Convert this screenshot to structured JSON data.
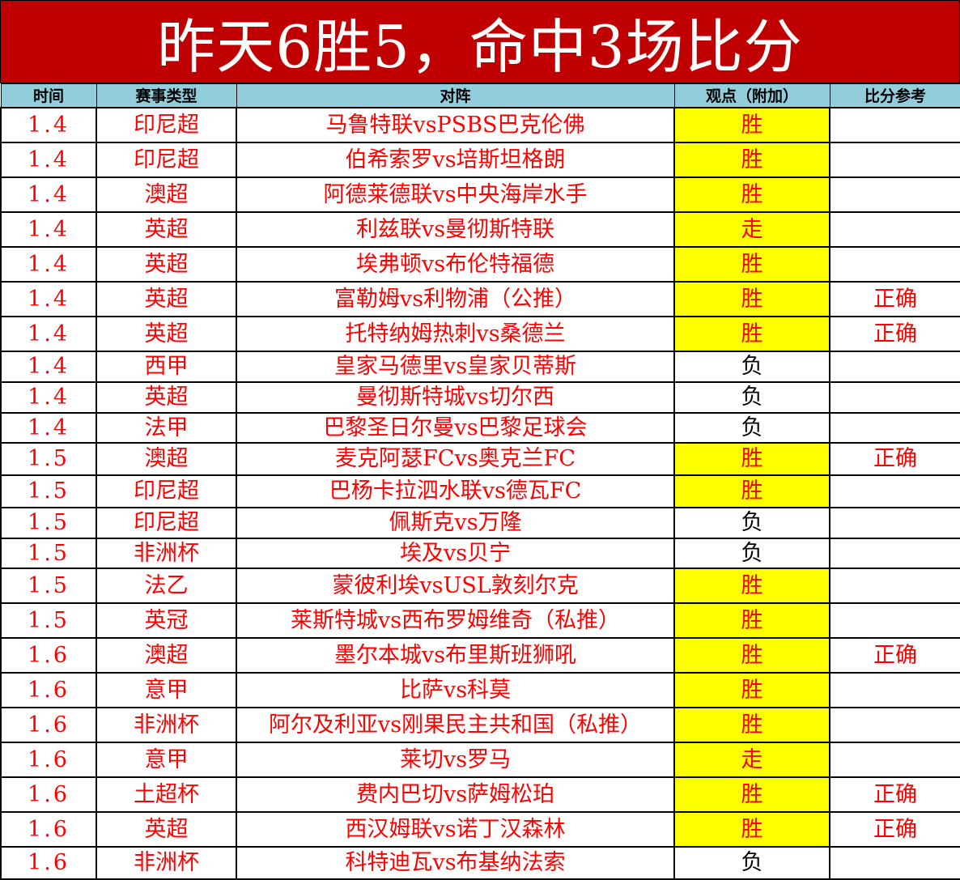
{
  "title": "昨天6胜5，命中3场比分",
  "colors": {
    "title_bg": "#c00000",
    "header_bg": "#92cddc",
    "text": "#ff0000",
    "highlight": "#ffff00"
  },
  "columns": [
    "时间",
    "赛事类型",
    "对阵",
    "观点（附加）",
    "比分参考"
  ],
  "rows": [
    {
      "date": "1.4",
      "league": "印尼超",
      "match": "马鲁特联vsPSBS巴克伦佛",
      "pick": "胜",
      "score": "",
      "highlight": true
    },
    {
      "date": "1.4",
      "league": "印尼超",
      "match": "伯希索罗vs培斯坦格朗",
      "pick": "胜",
      "score": "",
      "highlight": true
    },
    {
      "date": "1.4",
      "league": "澳超",
      "match": "阿德莱德联vs中央海岸水手",
      "pick": "胜",
      "score": "",
      "highlight": true
    },
    {
      "date": "1.4",
      "league": "英超",
      "match": "利兹联vs曼彻斯特联",
      "pick": "走",
      "score": "",
      "highlight": true
    },
    {
      "date": "1.4",
      "league": "英超",
      "match": "埃弗顿vs布伦特福德",
      "pick": "胜",
      "score": "",
      "highlight": true
    },
    {
      "date": "1.4",
      "league": "英超",
      "match": "富勒姆vs利物浦（公推）",
      "pick": "胜",
      "score": "正确",
      "highlight": true
    },
    {
      "date": "1.4",
      "league": "英超",
      "match": "托特纳姆热刺vs桑德兰",
      "pick": "胜",
      "score": "正确",
      "highlight": true
    },
    {
      "date": "1.4",
      "league": "西甲",
      "match": "皇家马德里vs皇家贝蒂斯",
      "pick": "负",
      "score": "",
      "highlight": false
    },
    {
      "date": "1.4",
      "league": "英超",
      "match": "曼彻斯特城vs切尔西",
      "pick": "负",
      "score": "",
      "highlight": false
    },
    {
      "date": "1.4",
      "league": "法甲",
      "match": "巴黎圣日尔曼vs巴黎足球会",
      "pick": "负",
      "score": "",
      "highlight": false
    },
    {
      "date": "1.5",
      "league": "澳超",
      "match": "麦克阿瑟FCvs奥克兰FC",
      "pick": "胜",
      "score": "正确",
      "highlight": true
    },
    {
      "date": "1.5",
      "league": "印尼超",
      "match": "巴杨卡拉泗水联vs德瓦FC",
      "pick": "胜",
      "score": "",
      "highlight": true
    },
    {
      "date": "1.5",
      "league": "印尼超",
      "match": "佩斯克vs万隆",
      "pick": "负",
      "score": "",
      "highlight": false
    },
    {
      "date": "1.5",
      "league": "非洲杯",
      "match": "埃及vs贝宁",
      "pick": "负",
      "score": "",
      "highlight": false
    },
    {
      "date": "1.5",
      "league": "法乙",
      "match": "蒙彼利埃vsUSL敦刻尔克",
      "pick": "胜",
      "score": "",
      "highlight": true
    },
    {
      "date": "1.5",
      "league": "英冠",
      "match": "莱斯特城vs西布罗姆维奇（私推）",
      "pick": "胜",
      "score": "",
      "highlight": true
    },
    {
      "date": "1.6",
      "league": "澳超",
      "match": "墨尔本城vs布里斯班狮吼",
      "pick": "胜",
      "score": "正确",
      "highlight": true
    },
    {
      "date": "1.6",
      "league": "意甲",
      "match": "比萨vs科莫",
      "pick": "胜",
      "score": "",
      "highlight": true
    },
    {
      "date": "1.6",
      "league": "非洲杯",
      "match": "阿尔及利亚vs刚果民主共和国（私推）",
      "pick": "胜",
      "score": "",
      "highlight": true
    },
    {
      "date": "1.6",
      "league": "意甲",
      "match": "莱切vs罗马",
      "pick": "走",
      "score": "",
      "highlight": true
    },
    {
      "date": "1.6",
      "league": "土超杯",
      "match": "费内巴切vs萨姆松珀",
      "pick": "胜",
      "score": "正确",
      "highlight": true
    },
    {
      "date": "1.6",
      "league": "英超",
      "match": "西汉姆联vs诺丁汉森林",
      "pick": "胜",
      "score": "正确",
      "highlight": true
    },
    {
      "date": "1.6",
      "league": "非洲杯",
      "match": "科特迪瓦vs布基纳法索",
      "pick": "负",
      "score": "",
      "highlight": false
    }
  ]
}
